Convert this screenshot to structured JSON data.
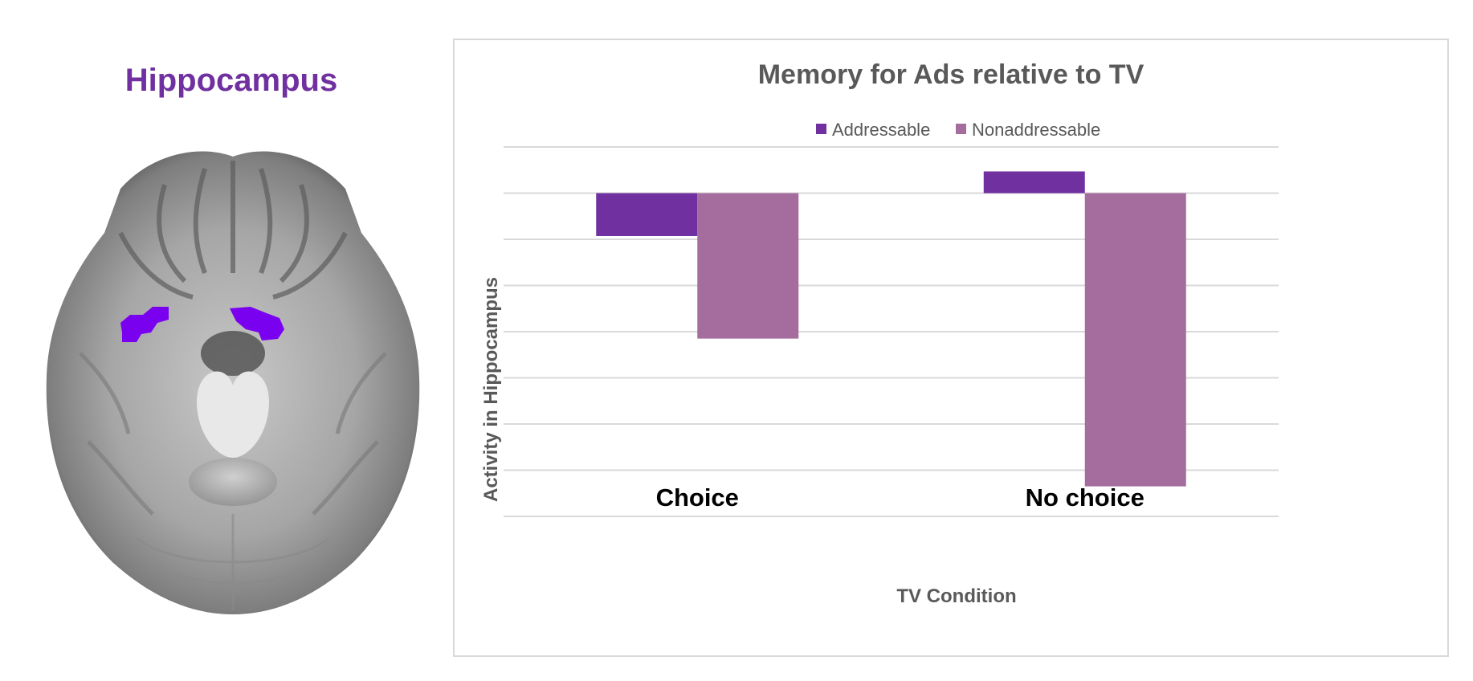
{
  "figure": {
    "brain_title": "Hippocampus",
    "highlight_color": "#7a00f0"
  },
  "chart_data": {
    "type": "bar",
    "title": "Memory for Ads relative to TV",
    "xlabel": "TV Condition",
    "ylabel": "Activity in Hippocampus",
    "categories": [
      "Choice",
      "No choice"
    ],
    "series": [
      {
        "name": "Addressable",
        "color": "#7030a0",
        "values": [
          -0.93,
          0.47
        ]
      },
      {
        "name": "Nonaddressable",
        "color": "#a56c9e",
        "values": [
          -3.15,
          -6.35
        ]
      }
    ],
    "ylim": [
      -7,
      1
    ],
    "gridlines": true,
    "tick_labels_shown": false,
    "legend_position": "top"
  }
}
